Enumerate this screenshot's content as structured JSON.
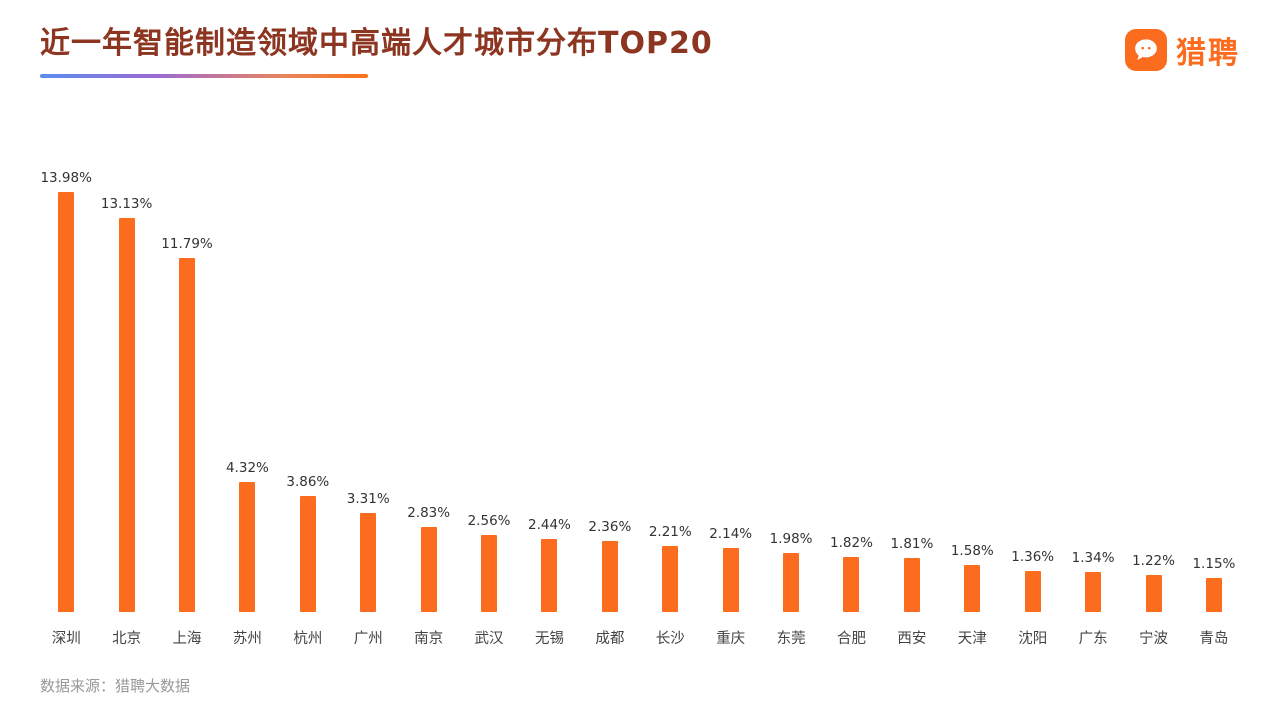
{
  "header": {
    "title": "近一年智能制造领域中高端人才城市分布TOP20",
    "logo_text": "猎聘"
  },
  "chart_data": {
    "type": "bar",
    "title": "近一年智能制造领域中高端人才城市分布TOP20",
    "categories": [
      "深圳",
      "北京",
      "上海",
      "苏州",
      "杭州",
      "广州",
      "南京",
      "武汉",
      "无锡",
      "成都",
      "长沙",
      "重庆",
      "东莞",
      "合肥",
      "西安",
      "天津",
      "沈阳",
      "广东",
      "宁波",
      "青岛"
    ],
    "values": [
      13.98,
      13.13,
      11.79,
      4.32,
      3.86,
      3.31,
      2.83,
      2.56,
      2.44,
      2.36,
      2.21,
      2.14,
      1.98,
      1.82,
      1.81,
      1.58,
      1.36,
      1.34,
      1.22,
      1.15
    ],
    "unit": "%",
    "xlabel": "",
    "ylabel": "",
    "ylim": [
      0,
      14
    ],
    "grid": false,
    "legend": false,
    "bar_color": "#FB6C1E",
    "value_label_color": "#333333",
    "category_label_color": "#444444"
  },
  "footer": {
    "source": "数据来源：猎聘大数据"
  },
  "colors": {
    "accent_orange": "#FB6C1E",
    "title_color": "#8C3520",
    "underline_gradient": [
      "#5B8DEF",
      "#9B6BD3",
      "#F97316"
    ]
  }
}
